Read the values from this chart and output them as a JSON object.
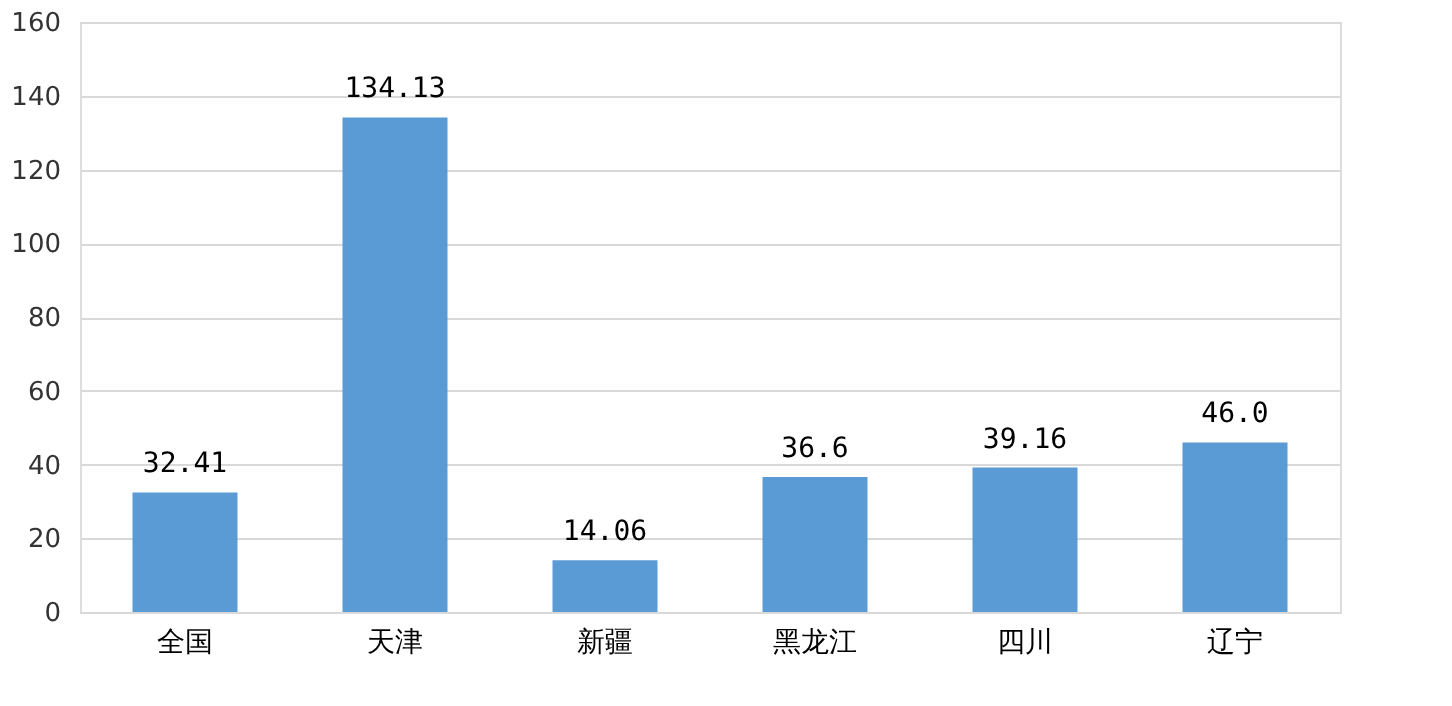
{
  "chart_data": {
    "type": "bar",
    "categories": [
      "全国",
      "天津",
      "新疆",
      "黑龙江",
      "四川",
      "辽宁"
    ],
    "values": [
      32.41,
      134.13,
      14.06,
      36.6,
      39.16,
      46.0
    ],
    "value_labels": [
      "32.41",
      "134.13",
      "14.06",
      "36.6",
      "39.16",
      "46.0"
    ],
    "color": "#5b9bd5",
    "ylim": [
      0,
      160
    ],
    "yticks": [
      0,
      20,
      40,
      60,
      80,
      100,
      120,
      140,
      160
    ],
    "grid": "y"
  }
}
